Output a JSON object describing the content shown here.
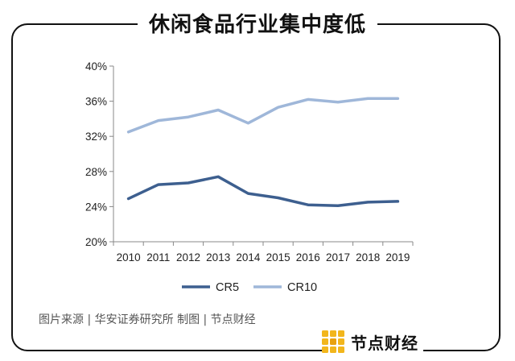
{
  "title": "休闲食品行业集中度低",
  "source": "图片来源 | 华安证券研究所   制图 | 节点财经",
  "brand": "节点财经",
  "chart_data": {
    "type": "line",
    "title": "",
    "xlabel": "",
    "ylabel": "",
    "categories": [
      "2010",
      "2011",
      "2012",
      "2013",
      "2014",
      "2015",
      "2016",
      "2017",
      "2018",
      "2019"
    ],
    "ylim": [
      20,
      40
    ],
    "yticks": [
      20,
      24,
      28,
      32,
      36,
      40
    ],
    "ytick_suffix": "%",
    "grid": false,
    "legend_position": "bottom",
    "series": [
      {
        "name": "CR5",
        "color": "#3d5f8f",
        "values": [
          24.9,
          26.5,
          26.7,
          27.4,
          25.5,
          25.0,
          24.2,
          24.1,
          24.5,
          24.6
        ]
      },
      {
        "name": "CR10",
        "color": "#9fb7d9",
        "values": [
          32.5,
          33.8,
          34.2,
          35.0,
          33.5,
          35.3,
          36.2,
          35.9,
          36.3,
          36.3
        ]
      }
    ]
  }
}
